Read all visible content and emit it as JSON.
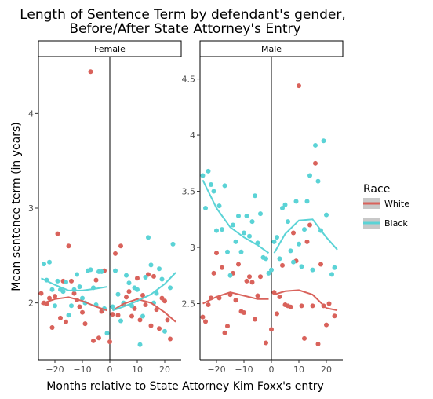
{
  "chart_data": {
    "type": "scatter",
    "title_line1": "Length of Sentence Term by defendant's gender,",
    "title_line2": "Before/After State Attorney's Entry",
    "xlabel": "Months relative to State Attorney Kim Foxx's entry",
    "ylabel": "Mean sentence term (in years)",
    "legend": {
      "title": "Race",
      "position": "right"
    },
    "colors": {
      "White": "#d9625b",
      "Black": "#5bd3d6"
    },
    "x_ticks": [
      -20,
      -10,
      0,
      10,
      20
    ],
    "x_tick_labels": [
      "−20",
      "−10",
      "0",
      "10",
      "20"
    ],
    "xlim": [
      -26,
      26
    ],
    "facets": [
      {
        "label": "Female",
        "ylim": [
          1.4,
          4.6
        ],
        "y_ticks": [
          2,
          3,
          4
        ],
        "y_tick_labels": [
          "2",
          "3",
          "4"
        ],
        "vline_x": 0,
        "series": [
          {
            "name": "White",
            "points": [
              [
                -25,
                2.1
              ],
              [
                -24,
                2.0
              ],
              [
                -23,
                1.99
              ],
              [
                -22,
                2.05
              ],
              [
                -21,
                1.74
              ],
              [
                -20,
                2.07
              ],
              [
                -19,
                2.73
              ],
              [
                -18,
                1.84
              ],
              [
                -17,
                2.23
              ],
              [
                -16,
                1.8
              ],
              [
                -15,
                2.6
              ],
              [
                -14,
                2.23
              ],
              [
                -13,
                2.1
              ],
              [
                -12,
                2.03
              ],
              [
                -11,
                1.96
              ],
              [
                -10,
                1.9
              ],
              [
                -9,
                1.78
              ],
              [
                -7,
                4.44
              ],
              [
                -6,
                1.6
              ],
              [
                -5,
                2.24
              ],
              [
                -4,
                1.63
              ],
              [
                -3,
                1.91
              ],
              [
                -2,
                2.34
              ],
              [
                0,
                1.59
              ],
              [
                1,
                1.88
              ],
              [
                2,
                2.52
              ],
              [
                3,
                1.87
              ],
              [
                4,
                2.6
              ],
              [
                5,
                1.99
              ],
              [
                6,
                2.06
              ],
              [
                7,
                2.12
              ],
              [
                8,
                1.86
              ],
              [
                9,
                1.94
              ],
              [
                10,
                2.26
              ],
              [
                11,
                1.82
              ],
              [
                12,
                2.08
              ],
              [
                13,
                1.98
              ],
              [
                14,
                2.3
              ],
              [
                15,
                1.76
              ],
              [
                16,
                2.28
              ],
              [
                17,
                1.93
              ],
              [
                18,
                1.73
              ],
              [
                19,
                2.05
              ],
              [
                20,
                2.02
              ],
              [
                21,
                1.82
              ],
              [
                22,
                1.62
              ]
            ],
            "trend": [
              [
                -25,
                1.99
              ],
              [
                -20,
                2.04
              ],
              [
                -15,
                2.06
              ],
              [
                -10,
                2.02
              ],
              [
                -5,
                1.96
              ],
              [
                -1,
                1.92
              ],
              [
                1,
                1.92
              ],
              [
                5,
                1.99
              ],
              [
                10,
                2.04
              ],
              [
                15,
                2.0
              ],
              [
                20,
                1.9
              ],
              [
                24,
                1.8
              ]
            ]
          },
          {
            "name": "Black",
            "points": [
              [
                -24,
                2.41
              ],
              [
                -23,
                2.24
              ],
              [
                -22,
                2.43
              ],
              [
                -21,
                2.14
              ],
              [
                -20,
                1.97
              ],
              [
                -19,
                2.23
              ],
              [
                -18,
                2.14
              ],
              [
                -17,
                2.12
              ],
              [
                -16,
                2.22
              ],
              [
                -15,
                1.87
              ],
              [
                -14,
                1.97
              ],
              [
                -13,
                2.14
              ],
              [
                -12,
                2.3
              ],
              [
                -11,
                2.17
              ],
              [
                -10,
                2.05
              ],
              [
                -9,
                2.0
              ],
              [
                -8,
                2.34
              ],
              [
                -7,
                2.35
              ],
              [
                -6,
                2.16
              ],
              [
                -5,
                1.98
              ],
              [
                -4,
                2.33
              ],
              [
                -3,
                2.33
              ],
              [
                -2,
                1.94
              ],
              [
                -1,
                1.68
              ],
              [
                1,
                1.96
              ],
              [
                2,
                2.34
              ],
              [
                3,
                2.09
              ],
              [
                4,
                1.81
              ],
              [
                5,
                2.0
              ],
              [
                6,
                2.29
              ],
              [
                7,
                2.21
              ],
              [
                8,
                1.97
              ],
              [
                9,
                2.16
              ],
              [
                10,
                2.14
              ],
              [
                11,
                1.56
              ],
              [
                12,
                1.86
              ],
              [
                13,
                2.27
              ],
              [
                14,
                2.69
              ],
              [
                15,
                2.4
              ],
              [
                16,
                2.0
              ],
              [
                17,
                2.1
              ],
              [
                18,
                2.36
              ],
              [
                19,
                2.25
              ],
              [
                20,
                1.7
              ],
              [
                22,
                2.16
              ],
              [
                23,
                2.62
              ]
            ],
            "trend": [
              [
                -25,
                2.26
              ],
              [
                -20,
                2.19
              ],
              [
                -15,
                2.13
              ],
              [
                -10,
                2.13
              ],
              [
                -5,
                2.15
              ],
              [
                -1,
                2.17
              ],
              [
                1,
                1.92
              ],
              [
                5,
                1.96
              ],
              [
                10,
                2.02
              ],
              [
                15,
                2.09
              ],
              [
                20,
                2.2
              ],
              [
                24,
                2.32
              ]
            ]
          }
        ]
      },
      {
        "label": "Male",
        "ylim": [
          2.0,
          4.7
        ],
        "y_ticks": [
          2.5,
          3,
          3.5,
          4,
          4.5
        ],
        "y_tick_labels": [
          "2.5",
          "3",
          "3.5",
          "4",
          "4.5"
        ],
        "vline_x": 0,
        "series": [
          {
            "name": "White",
            "points": [
              [
                -25,
                2.38
              ],
              [
                -24,
                2.34
              ],
              [
                -23,
                2.49
              ],
              [
                -22,
                2.55
              ],
              [
                -21,
                2.77
              ],
              [
                -20,
                2.95
              ],
              [
                -19,
                2.55
              ],
              [
                -18,
                2.82
              ],
              [
                -17,
                2.24
              ],
              [
                -16,
                2.3
              ],
              [
                -15,
                2.58
              ],
              [
                -14,
                2.77
              ],
              [
                -13,
                2.53
              ],
              [
                -12,
                2.85
              ],
              [
                -11,
                2.43
              ],
              [
                -10,
                2.42
              ],
              [
                -9,
                2.7
              ],
              [
                -8,
                2.74
              ],
              [
                -7,
                2.69
              ],
              [
                -6,
                2.36
              ],
              [
                -5,
                2.57
              ],
              [
                -4,
                2.74
              ],
              [
                -2,
                2.15
              ],
              [
                0,
                2.27
              ],
              [
                1,
                2.6
              ],
              [
                2,
                2.41
              ],
              [
                3,
                2.56
              ],
              [
                4,
                2.84
              ],
              [
                5,
                2.49
              ],
              [
                6,
                2.48
              ],
              [
                7,
                2.47
              ],
              [
                8,
                3.13
              ],
              [
                9,
                2.88
              ],
              [
                10,
                4.44
              ],
              [
                11,
                2.48
              ],
              [
                12,
                2.19
              ],
              [
                13,
                3.05
              ],
              [
                14,
                3.2
              ],
              [
                15,
                2.48
              ],
              [
                16,
                3.75
              ],
              [
                17,
                2.14
              ],
              [
                18,
                2.85
              ],
              [
                19,
                2.48
              ],
              [
                20,
                2.31
              ],
              [
                21,
                2.5
              ],
              [
                23,
                2.39
              ]
            ],
            "trend": [
              [
                -25,
                2.5
              ],
              [
                -20,
                2.56
              ],
              [
                -15,
                2.6
              ],
              [
                -10,
                2.57
              ],
              [
                -5,
                2.54
              ],
              [
                -1,
                2.54
              ],
              [
                1,
                2.58
              ],
              [
                5,
                2.61
              ],
              [
                10,
                2.62
              ],
              [
                15,
                2.58
              ],
              [
                20,
                2.46
              ],
              [
                24,
                2.44
              ]
            ]
          },
          {
            "name": "Black",
            "points": [
              [
                -25,
                3.64
              ],
              [
                -24,
                3.35
              ],
              [
                -23,
                3.68
              ],
              [
                -22,
                3.56
              ],
              [
                -21,
                3.5
              ],
              [
                -20,
                3.15
              ],
              [
                -19,
                3.37
              ],
              [
                -18,
                3.16
              ],
              [
                -17,
                3.55
              ],
              [
                -16,
                2.96
              ],
              [
                -15,
                2.75
              ],
              [
                -14,
                3.2
              ],
              [
                -13,
                3.05
              ],
              [
                -12,
                3.28
              ],
              [
                -11,
                2.96
              ],
              [
                -10,
                3.13
              ],
              [
                -9,
                3.28
              ],
              [
                -8,
                3.1
              ],
              [
                -7,
                3.23
              ],
              [
                -6,
                3.46
              ],
              [
                -5,
                3.04
              ],
              [
                -4,
                3.3
              ],
              [
                -3,
                2.91
              ],
              [
                -2,
                2.9
              ],
              [
                -1,
                2.77
              ],
              [
                0,
                2.8
              ],
              [
                1,
                3.05
              ],
              [
                2,
                3.09
              ],
              [
                3,
                2.9
              ],
              [
                4,
                3.35
              ],
              [
                5,
                3.38
              ],
              [
                6,
                3.23
              ],
              [
                7,
                2.97
              ],
              [
                8,
                2.87
              ],
              [
                9,
                3.41
              ],
              [
                10,
                3.03
              ],
              [
                11,
                2.83
              ],
              [
                12,
                3.16
              ],
              [
                13,
                3.41
              ],
              [
                14,
                3.64
              ],
              [
                15,
                2.8
              ],
              [
                16,
                3.91
              ],
              [
                17,
                3.59
              ],
              [
                18,
                3.15
              ],
              [
                19,
                3.95
              ],
              [
                20,
                3.29
              ],
              [
                22,
                2.76
              ],
              [
                23,
                2.82
              ]
            ],
            "trend": [
              [
                -25,
                3.6
              ],
              [
                -20,
                3.35
              ],
              [
                -15,
                3.18
              ],
              [
                -10,
                3.09
              ],
              [
                -5,
                3.02
              ],
              [
                -1,
                2.95
              ],
              [
                1,
                2.95
              ],
              [
                5,
                3.12
              ],
              [
                10,
                3.24
              ],
              [
                15,
                3.25
              ],
              [
                20,
                3.09
              ],
              [
                24,
                2.98
              ]
            ]
          }
        ]
      }
    ]
  }
}
